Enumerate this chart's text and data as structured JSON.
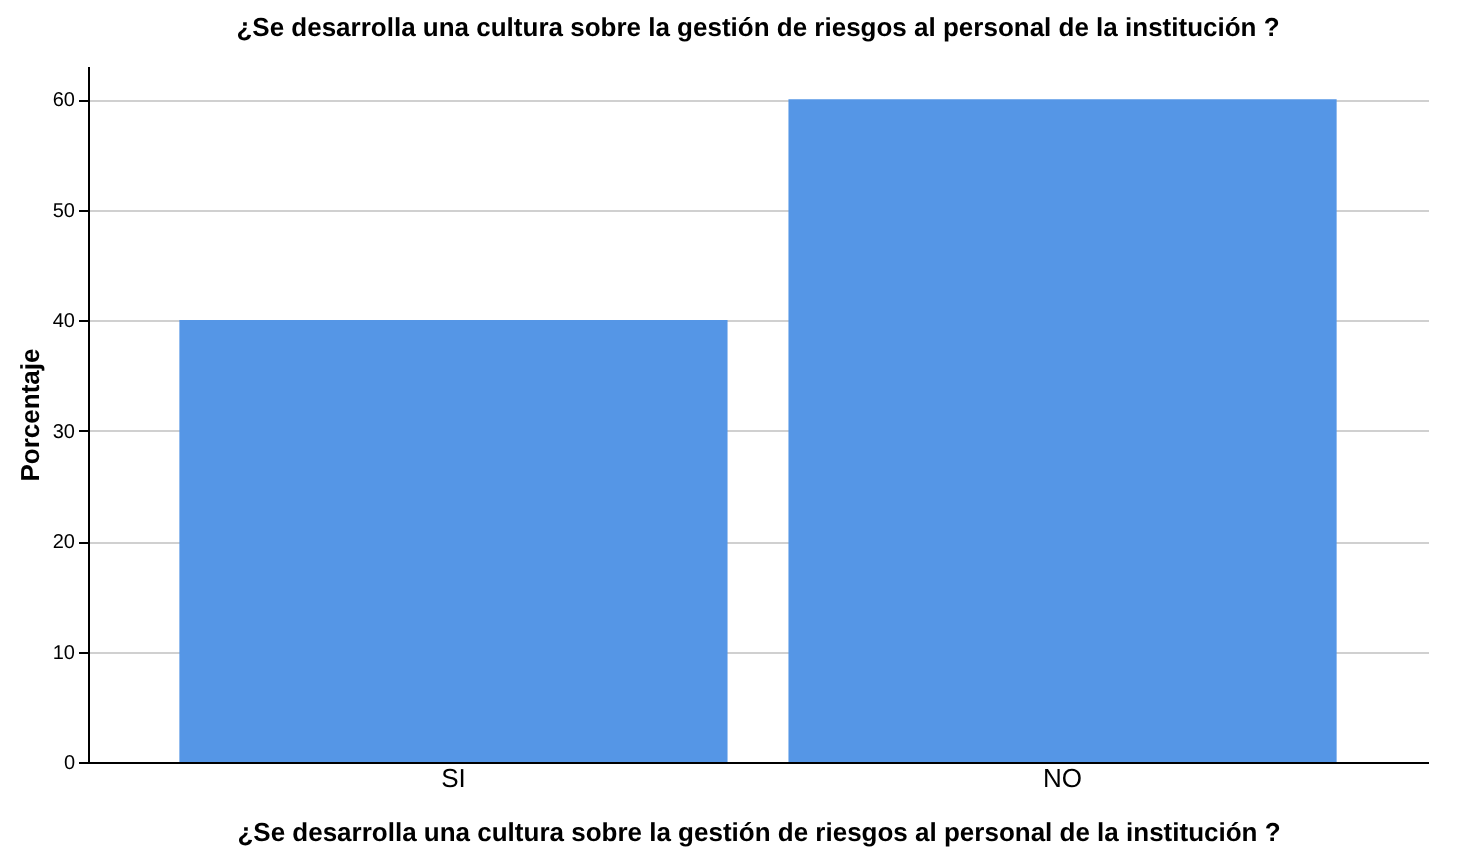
{
  "chart_data": {
    "type": "bar",
    "title": "¿Se desarrolla una cultura sobre la gestión de riesgos al personal de la institución ?",
    "xlabel": "¿Se desarrolla una cultura sobre la gestión de riesgos al personal de la institución ?",
    "ylabel": "Porcentaje",
    "categories": [
      "SI",
      "NO"
    ],
    "values": [
      40,
      60
    ],
    "color": "#5596e6",
    "ylim": [
      0,
      63
    ],
    "yticks": [
      0,
      10,
      20,
      30,
      40,
      50,
      60
    ],
    "grid": "y"
  }
}
